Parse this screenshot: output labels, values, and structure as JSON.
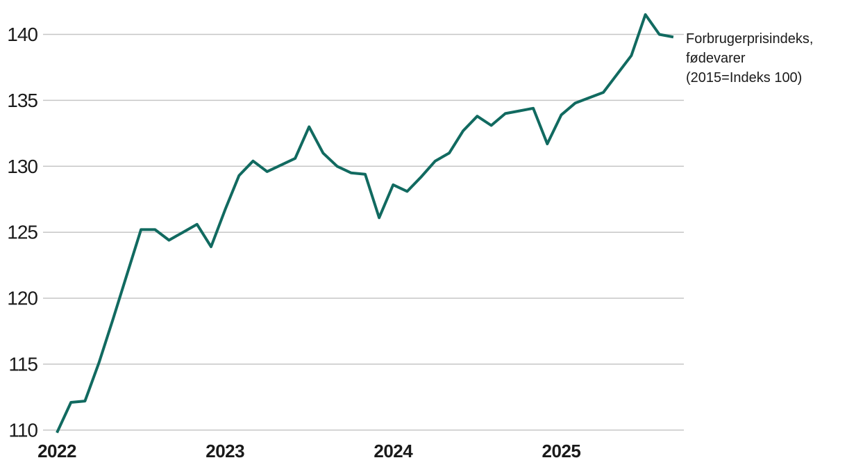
{
  "legend": {
    "lines": [
      "Forbrugerprisindeks,",
      "fødevarer",
      "(2015=Indeks 100)"
    ]
  },
  "colors": {
    "line": "#116a60",
    "gridline": "#c6c6c6",
    "axis_text": "#1a1a1a",
    "background": "#ffffff"
  },
  "chart_data": {
    "type": "line",
    "title": "Forbrugerprisindeks, fødevarer (2015=Indeks 100)",
    "xlabel": "",
    "ylabel": "",
    "grid": "horizontal",
    "legend_position": "right-of-line-end",
    "y_ticks": [
      110,
      115,
      120,
      125,
      130,
      135,
      140
    ],
    "ylim": [
      108,
      142.5
    ],
    "x_tick_labels": [
      "2022",
      "2023",
      "2024",
      "2025"
    ],
    "x": [
      "2022-01",
      "2022-02",
      "2022-03",
      "2022-04",
      "2022-05",
      "2022-06",
      "2022-07",
      "2022-08",
      "2022-09",
      "2022-10",
      "2022-11",
      "2022-12",
      "2023-01",
      "2023-02",
      "2023-03",
      "2023-04",
      "2023-05",
      "2023-06",
      "2023-07",
      "2023-08",
      "2023-09",
      "2023-10",
      "2023-11",
      "2023-12",
      "2024-01",
      "2024-02",
      "2024-03",
      "2024-04",
      "2024-05",
      "2024-06",
      "2024-07",
      "2024-08",
      "2024-09",
      "2024-10",
      "2024-11",
      "2024-12",
      "2025-01",
      "2025-02",
      "2025-03",
      "2025-04",
      "2025-05",
      "2025-06",
      "2025-07",
      "2025-08",
      "2025-09"
    ],
    "series": [
      {
        "name": "Forbrugerprisindeks, fødevarer (2015=Indeks 100)",
        "values": [
          109.8,
          112.1,
          112.2,
          115.1,
          118.4,
          121.8,
          125.2,
          125.2,
          124.4,
          125.0,
          125.6,
          123.9,
          126.7,
          129.3,
          130.4,
          129.6,
          130.1,
          130.6,
          133.0,
          131.0,
          130.0,
          129.5,
          129.4,
          126.1,
          128.6,
          128.1,
          129.2,
          130.4,
          131.0,
          132.7,
          133.8,
          133.1,
          134.0,
          134.2,
          134.4,
          131.7,
          133.9,
          134.8,
          135.2,
          135.6,
          137.0,
          138.4,
          141.5,
          140.0,
          139.8
        ]
      }
    ]
  }
}
